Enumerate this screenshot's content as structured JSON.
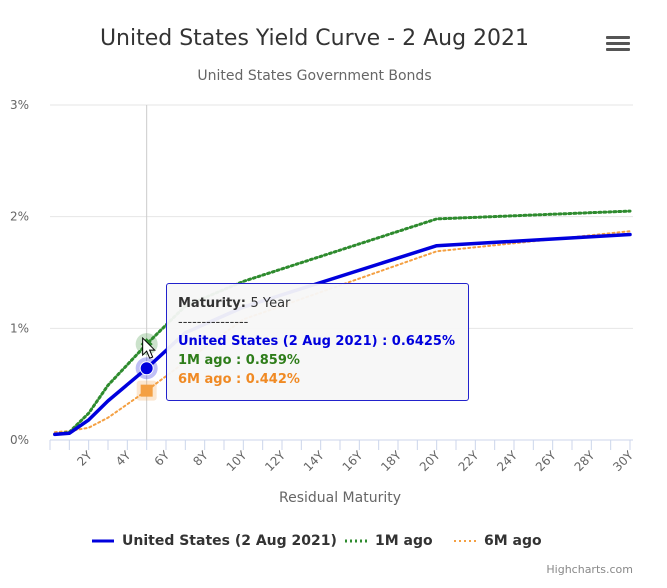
{
  "chart_data": {
    "type": "line",
    "title": "United States Yield Curve - 2 Aug 2021",
    "subtitle": "United States Government Bonds",
    "xlabel": "Residual Maturity",
    "ylabel": "",
    "x_tick_labels": [
      "2Y",
      "4Y",
      "6Y",
      "8Y",
      "10Y",
      "12Y",
      "14Y",
      "16Y",
      "18Y",
      "20Y",
      "22Y",
      "24Y",
      "26Y",
      "28Y",
      "30Y"
    ],
    "y_tick_labels": [
      "0%",
      "1%",
      "2%",
      "3%"
    ],
    "xlim": [
      0,
      30
    ],
    "ylim": [
      0,
      3
    ],
    "grid": "horizontal",
    "legend_position": "bottom",
    "series": [
      {
        "name": "United States (2 Aug 2021)",
        "color": "#0000dd",
        "style": "solid",
        "x": [
          0.25,
          1,
          2,
          3,
          5,
          7,
          10,
          20,
          30
        ],
        "y": [
          0.05,
          0.06,
          0.18,
          0.35,
          0.6425,
          0.96,
          1.19,
          1.74,
          1.84
        ]
      },
      {
        "name": "1M ago",
        "color": "#2e8b2e",
        "style": "dotted",
        "x": [
          0.25,
          1,
          2,
          3,
          5,
          7,
          10,
          20,
          30
        ],
        "y": [
          0.05,
          0.07,
          0.24,
          0.49,
          0.859,
          1.2,
          1.42,
          1.98,
          2.05
        ]
      },
      {
        "name": "6M ago",
        "color": "#f4a043",
        "style": "dotted",
        "x": [
          0.25,
          1,
          2,
          3,
          5,
          7,
          10,
          20,
          30
        ],
        "y": [
          0.07,
          0.08,
          0.11,
          0.2,
          0.442,
          0.7,
          1.08,
          1.69,
          1.87
        ]
      }
    ],
    "tooltip": {
      "header_label": "Maturity",
      "header_value": "5 Year",
      "separator": "---------------",
      "rows": [
        {
          "text": "United States (2 Aug 2021) : 0.6425%",
          "color": "#0000dd"
        },
        {
          "text": "1M ago : 0.859%",
          "color": "#2e7d1a"
        },
        {
          "text": "6M ago : 0.442%",
          "color": "#f08a24"
        }
      ],
      "hover_x": 5
    }
  },
  "menu_icon": "hamburger-menu-icon",
  "credits": "Highcharts.com"
}
